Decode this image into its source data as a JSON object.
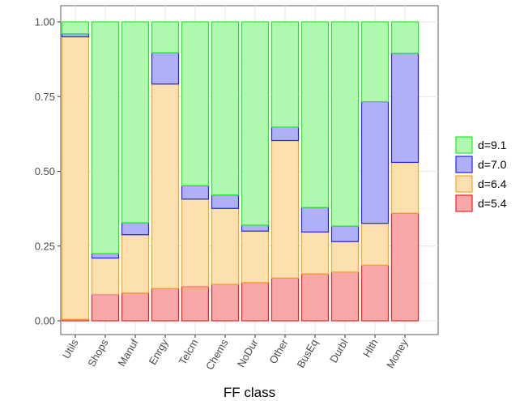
{
  "chart_data": {
    "type": "bar",
    "stacked": true,
    "xlabel": "FF class",
    "ylabel": "",
    "ylim": [
      0,
      1
    ],
    "yticks": [
      0.0,
      0.25,
      0.5,
      0.75,
      1.0
    ],
    "ytick_labels": [
      "0.00",
      "0.25",
      "0.50",
      "0.75",
      "1.00"
    ],
    "grid": true,
    "legend_position": "right",
    "categories": [
      "Utils",
      "Shops",
      "Manuf",
      "Enrgy",
      "Telcm",
      "Chems",
      "NoDur",
      "Other",
      "BusEq",
      "Durbl",
      "Hlth",
      "Money"
    ],
    "series": [
      {
        "name": "d=5.4",
        "fill": "#f8a8a8",
        "stroke": "#ee2222",
        "values": [
          0.005,
          0.088,
          0.093,
          0.108,
          0.115,
          0.122,
          0.128,
          0.143,
          0.157,
          0.163,
          0.186,
          0.36
        ]
      },
      {
        "name": "d=6.4",
        "fill": "#fde0b0",
        "stroke": "#f5a623",
        "values": [
          0.945,
          0.122,
          0.195,
          0.684,
          0.292,
          0.254,
          0.172,
          0.46,
          0.14,
          0.102,
          0.14,
          0.17
        ]
      },
      {
        "name": "d=7.0",
        "fill": "#b0b0f8",
        "stroke": "#2222ee",
        "values": [
          0.01,
          0.015,
          0.04,
          0.105,
          0.045,
          0.045,
          0.02,
          0.045,
          0.082,
          0.052,
          0.407,
          0.365
        ]
      },
      {
        "name": "d=9.1",
        "fill": "#b0f8b0",
        "stroke": "#22ee22",
        "values": [
          0.04,
          0.775,
          0.672,
          0.103,
          0.548,
          0.579,
          0.68,
          0.352,
          0.621,
          0.683,
          0.267,
          0.105
        ]
      }
    ],
    "legend_order": [
      "d=9.1",
      "d=7.0",
      "d=6.4",
      "d=5.4"
    ]
  }
}
